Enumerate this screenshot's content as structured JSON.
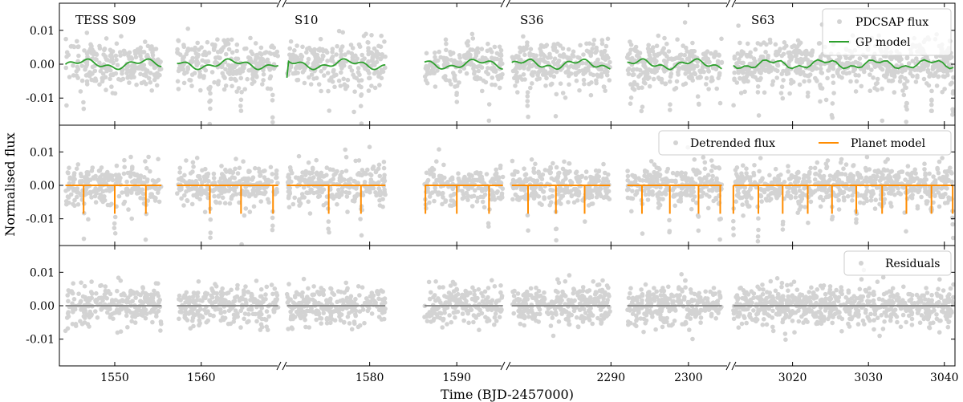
{
  "chart_data": {
    "type": "scatter",
    "ylabel": "Normalised flux",
    "xlabel": "Time (BJD-2457000)",
    "yticks": [
      -0.01,
      0.0,
      0.01
    ],
    "ytick_labels": [
      "-0.01",
      "0.00",
      "0.01"
    ],
    "ylim": [
      -0.018,
      0.018
    ],
    "segments": [
      {
        "xlim": [
          1543.6,
          1569.3
        ],
        "data_ranges": [
          [
            1544.3,
            1555.4
          ],
          [
            1557.2,
            1568.9
          ]
        ],
        "xticks": [
          1550,
          1560
        ]
      },
      {
        "xlim": [
          1569.9,
          1595.6
        ],
        "data_ranges": [
          [
            1570.5,
            1581.8
          ],
          [
            1586.3,
            1595.3
          ]
        ],
        "xticks": [
          1580,
          1590
        ]
      },
      {
        "xlim": [
          2276.4,
          2305.5
        ],
        "data_ranges": [
          [
            2277.2,
            2289.9
          ],
          [
            2292.1,
            2304.3
          ]
        ],
        "xticks": [
          2290,
          2300
        ]
      },
      {
        "xlim": [
          3011.9,
          3041.4
        ],
        "data_ranges": [
          [
            3012.2,
            3041.2
          ]
        ],
        "xticks": [
          3020,
          3030,
          3040
        ]
      }
    ],
    "sector_labels": [
      {
        "text": "TESS S09",
        "segment": 0
      },
      {
        "text": "S10",
        "segment": 1
      },
      {
        "text": "S36",
        "segment": 2
      },
      {
        "text": "S63",
        "segment": 3
      }
    ],
    "panels": [
      {
        "name": "top",
        "series": [
          {
            "name": "PDCSAP flux",
            "kind": "scatter",
            "color": "#d3d3d3",
            "scatter_std": 0.0035
          },
          {
            "name": "GP model",
            "kind": "line",
            "color": "#2ca02c",
            "amplitude": 0.0015
          }
        ],
        "legend_loc": "upper right"
      },
      {
        "name": "middle",
        "series": [
          {
            "name": "Detrended flux",
            "kind": "scatter",
            "color": "#d3d3d3",
            "scatter_std": 0.003
          },
          {
            "name": "Planet model",
            "kind": "transit",
            "color": "#ff8c00",
            "transit_depth": 0.0085,
            "transit_times": [
              1546.4,
              1550.0,
              1553.6,
              1561.0,
              1564.6,
              1568.3,
              1575.3,
              1579.0,
              1586.4,
              1590.0,
              1593.7,
              2279.3,
              2282.9,
              2286.6,
              2294.0,
              2297.6,
              2301.3,
              2304.1,
              3012.2,
              3015.5,
              3018.7,
              3022.0,
              3025.2,
              3028.4,
              3031.8,
              3035.0,
              3038.3,
              3041.1
            ]
          }
        ],
        "legend_loc": "upper right"
      },
      {
        "name": "bottom",
        "series": [
          {
            "name": "Residuals",
            "kind": "scatter",
            "color": "#d3d3d3",
            "scatter_std": 0.003
          },
          {
            "name": "zero line",
            "kind": "hline",
            "color": "#8c8c8c",
            "value": 0.0
          }
        ],
        "legend_loc": "upper right"
      }
    ]
  }
}
